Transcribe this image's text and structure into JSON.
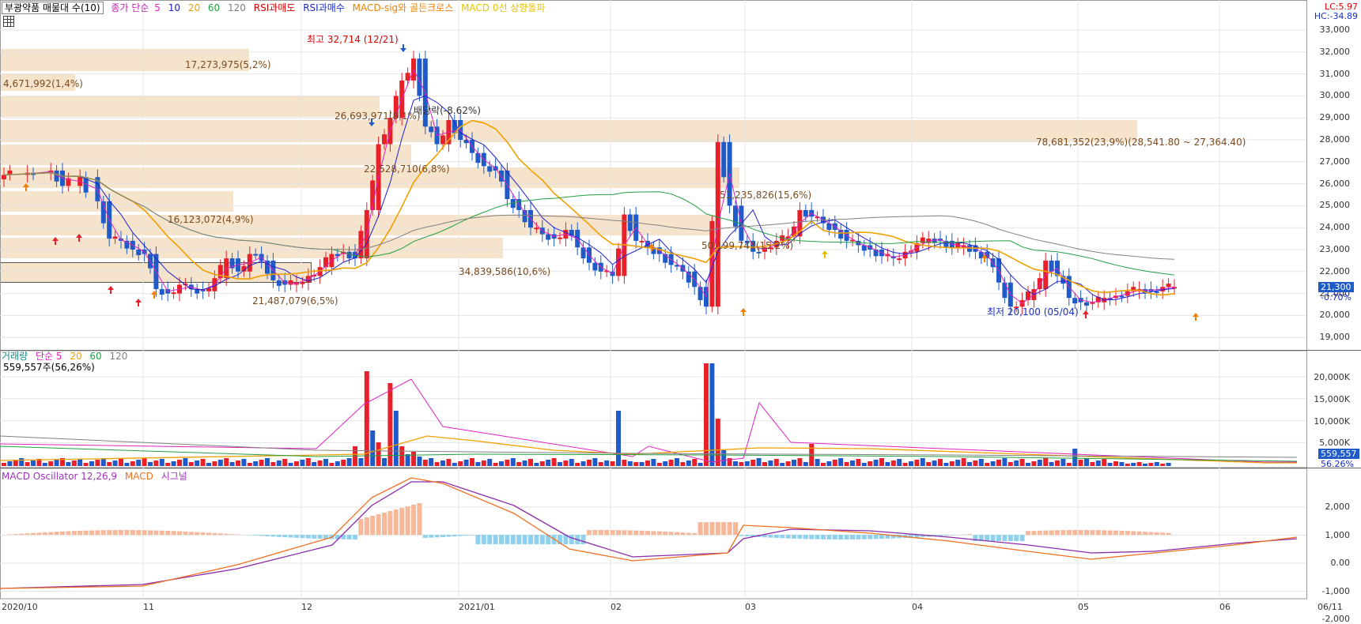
{
  "legend_price": {
    "name": "부광약품 매물대 수(10)",
    "ma_label": "종가 단순",
    "ma5": "5",
    "ma10": "10",
    "ma20": "20",
    "ma60": "60",
    "ma120": "120",
    "rsi_over": "RSI과매도",
    "rsi_buy": "RSI과매수",
    "macd_golden": "MACD-sig와 골든크로스",
    "macd_zero": "MACD 0선 상향돌파"
  },
  "legend_volume": {
    "name": "거래량",
    "ma_label": "단순 5",
    "ma20": "20",
    "ma60": "60",
    "ma120": "120",
    "value": "559,557주(56,26%)"
  },
  "legend_macd": {
    "osc": "MACD Oscillator 12,26,9",
    "macd": "MACD",
    "signal": "시그널"
  },
  "top_right": {
    "lc": "LC:5.97",
    "hc": "HC:-34.89"
  },
  "price_axis": [
    "33,000",
    "32,000",
    "31,000",
    "30,000",
    "29,000",
    "28,000",
    "27,000",
    "26,000",
    "25,000",
    "24,000",
    "23,000",
    "22,000",
    "21,000",
    "20,000",
    "19,000"
  ],
  "price_tag": {
    "value": "21,300",
    "change": "-0.70%"
  },
  "volume_axis": [
    "20,000K",
    "15,000K",
    "10,000K",
    "5,000K"
  ],
  "volume_tag": {
    "value": "559,557",
    "pct": "56.26%"
  },
  "macd_axis": [
    "2,000",
    "1,000",
    "0.00",
    "-1,000",
    "-2,000"
  ],
  "x_axis": [
    "2020/10",
    "11",
    "12",
    "2021/01",
    "02",
    "03",
    "04",
    "05",
    "06",
    "06/11"
  ],
  "volume_profile": [
    "17,273,975(5,2%)",
    "4,671,992(1,4%)",
    "26,693,971(8,1%)",
    "78,681,352(23,9%)(28,541.80 ~ 27,364.40)",
    "22,528,710(6,8%)",
    "51,235,826(15,6%)",
    "16,123,072(4,9%)",
    "50,199,741(15,2%)",
    "34,839,586(10,6%)",
    "21,487,079(6,5%)"
  ],
  "annotations": {
    "high": "최고 32,714 (12/21)",
    "low": "최저 20,100 (05/04)",
    "drop": "배당락(-8.62%)"
  },
  "colors": {
    "up": "#e8202a",
    "down": "#1e5bc8",
    "ma5": "#e020c0",
    "ma10": "#2020d0",
    "ma20": "#f0a000",
    "ma60": "#20a040",
    "ma120": "#808080"
  }
}
